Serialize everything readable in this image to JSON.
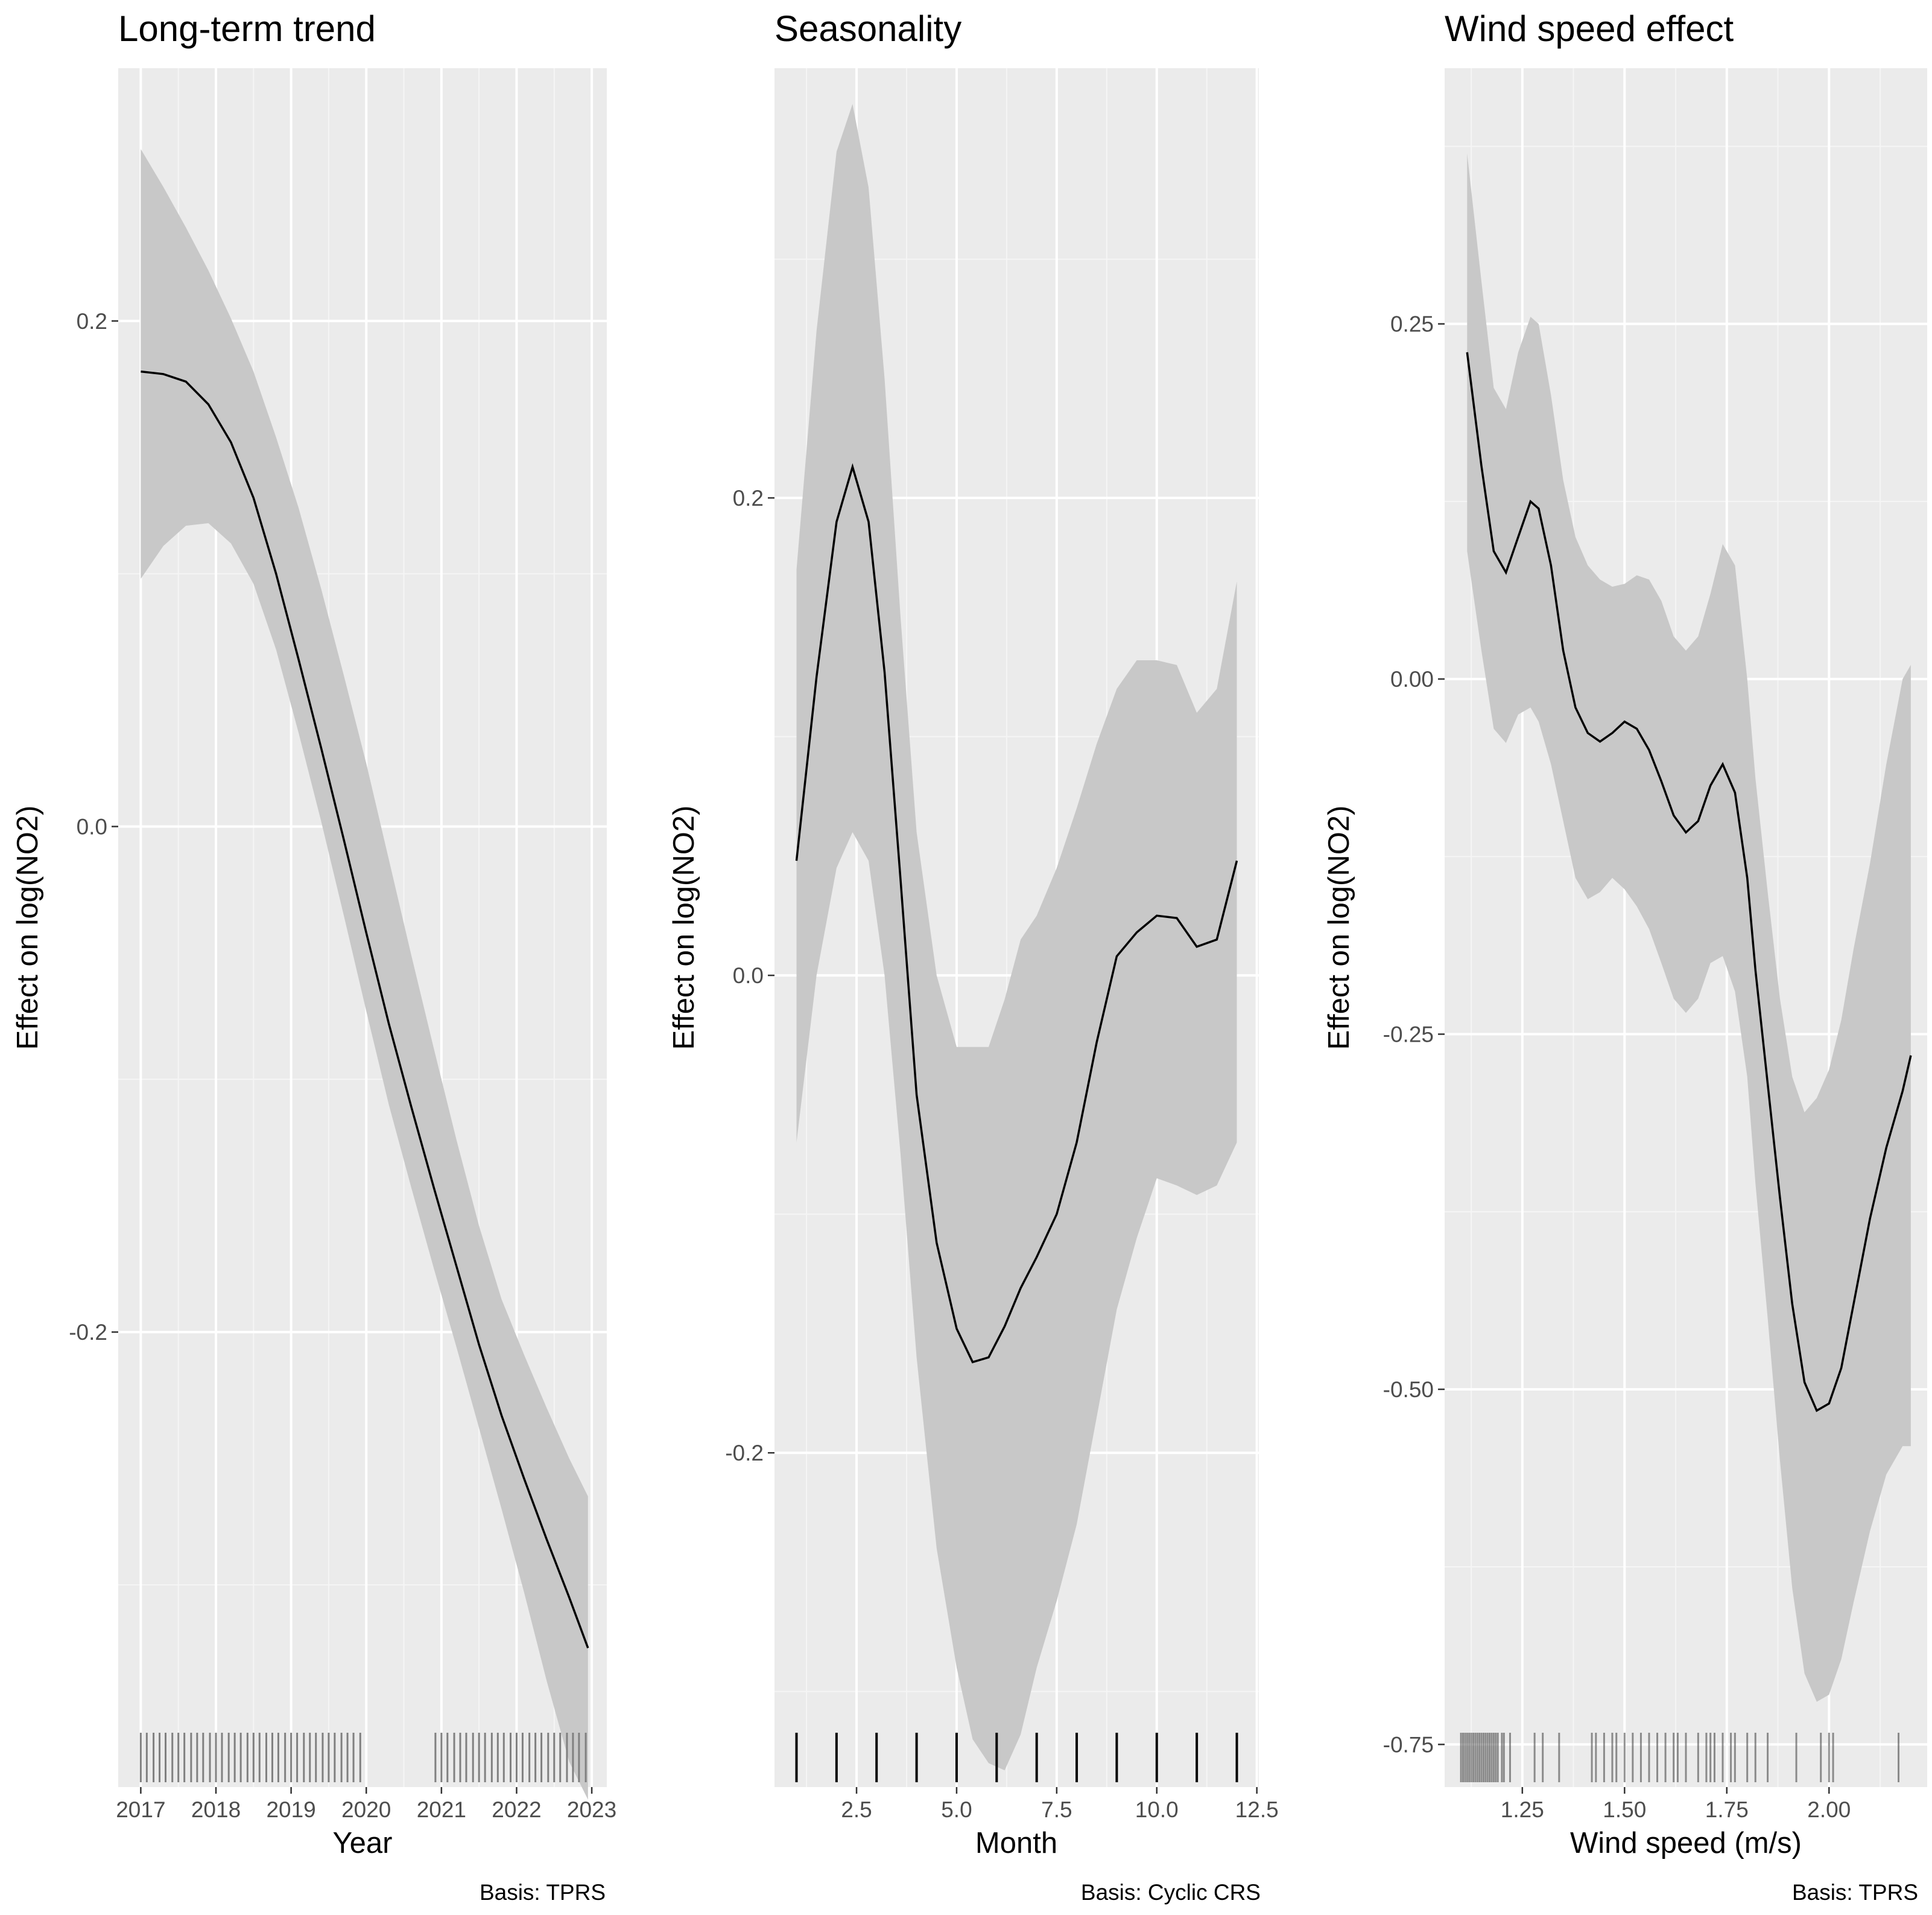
{
  "colors": {
    "panel_bg": "#ebebeb",
    "grid_major": "#ffffff",
    "grid_minor": "#f5f5f5",
    "ribbon": "#c8c8c8",
    "line": "#000000",
    "tick_text": "#4d4d4d",
    "rug_light": "#808080",
    "rug_dark": "#000000"
  },
  "chart_data": [
    {
      "type": "line",
      "title": "Long-term trend",
      "xlabel": "Year",
      "ylabel": "Effect on log(NO2)",
      "caption": "Basis: TPRS",
      "xlim": [
        2016.7,
        2023.2
      ],
      "ylim": [
        -0.38,
        0.3
      ],
      "x_ticks": [
        2017,
        2018,
        2019,
        2020,
        2021,
        2022,
        2023
      ],
      "x_tick_labels": [
        "2017",
        "2018",
        "2019",
        "2020",
        "2021",
        "2022",
        "2023"
      ],
      "y_ticks": [
        -0.2,
        0.0,
        0.2
      ],
      "y_tick_labels": [
        "-0.2",
        "0.0",
        "0.2"
      ],
      "x": [
        2017.0,
        2017.3,
        2017.6,
        2017.9,
        2018.2,
        2018.5,
        2018.8,
        2019.1,
        2019.4,
        2019.7,
        2020.0,
        2020.3,
        2020.6,
        2020.9,
        2021.2,
        2021.5,
        2021.8,
        2022.1,
        2022.4,
        2022.7,
        2022.95
      ],
      "fit": [
        0.18,
        0.179,
        0.176,
        0.167,
        0.152,
        0.13,
        0.1,
        0.066,
        0.031,
        -0.005,
        -0.042,
        -0.078,
        -0.111,
        -0.143,
        -0.174,
        -0.205,
        -0.233,
        -0.258,
        -0.282,
        -0.305,
        -0.325
      ],
      "lower": [
        0.098,
        0.111,
        0.119,
        0.12,
        0.112,
        0.096,
        0.07,
        0.037,
        0.002,
        -0.035,
        -0.073,
        -0.11,
        -0.143,
        -0.175,
        -0.206,
        -0.238,
        -0.27,
        -0.303,
        -0.338,
        -0.37,
        -0.385
      ],
      "upper": [
        0.268,
        0.253,
        0.237,
        0.22,
        0.201,
        0.18,
        0.154,
        0.126,
        0.094,
        0.06,
        0.025,
        -0.013,
        -0.051,
        -0.088,
        -0.124,
        -0.158,
        -0.187,
        -0.209,
        -0.23,
        -0.25,
        -0.265
      ],
      "rug": [
        2017.0,
        2017.08,
        2017.17,
        2017.25,
        2017.33,
        2017.42,
        2017.5,
        2017.58,
        2017.67,
        2017.75,
        2017.83,
        2017.92,
        2018.0,
        2018.08,
        2018.17,
        2018.25,
        2018.33,
        2018.42,
        2018.5,
        2018.58,
        2018.67,
        2018.75,
        2018.83,
        2018.92,
        2019.0,
        2019.08,
        2019.17,
        2019.25,
        2019.33,
        2019.42,
        2019.5,
        2019.58,
        2019.67,
        2019.75,
        2019.83,
        2019.92,
        2020.92,
        2021.0,
        2021.08,
        2021.17,
        2021.25,
        2021.33,
        2021.42,
        2021.5,
        2021.58,
        2021.67,
        2021.75,
        2021.83,
        2021.92,
        2022.0,
        2022.08,
        2022.17,
        2022.25,
        2022.33,
        2022.42,
        2022.5,
        2022.58,
        2022.67,
        2022.75,
        2022.83,
        2022.92
      ],
      "rug_shade": "light"
    },
    {
      "type": "line",
      "title": "Seasonality",
      "xlabel": "Month",
      "ylabel": "Effect on log(NO2)",
      "caption": "Basis: Cyclic CRS",
      "xlim": [
        0.45,
        12.55
      ],
      "ylim": [
        -0.34,
        0.38
      ],
      "x_ticks": [
        2.5,
        5.0,
        7.5,
        10.0,
        12.5
      ],
      "x_tick_labels": [
        "2.5",
        "5.0",
        "7.5",
        "10.0",
        "12.5"
      ],
      "y_ticks": [
        -0.2,
        0.0,
        0.2
      ],
      "y_tick_labels": [
        "-0.2",
        "0.0",
        "0.2"
      ],
      "x": [
        1.0,
        1.5,
        2.0,
        2.4,
        2.8,
        3.2,
        3.6,
        4.0,
        4.5,
        5.0,
        5.4,
        5.8,
        6.2,
        6.6,
        7.0,
        7.5,
        8.0,
        8.5,
        9.0,
        9.5,
        10.0,
        10.5,
        11.0,
        11.5,
        12.0
      ],
      "fit": [
        0.048,
        0.125,
        0.19,
        0.213,
        0.19,
        0.127,
        0.04,
        -0.05,
        -0.112,
        -0.148,
        -0.162,
        -0.16,
        -0.147,
        -0.131,
        -0.118,
        -0.1,
        -0.07,
        -0.028,
        0.008,
        0.018,
        0.025,
        0.024,
        0.012,
        0.015,
        0.048
      ],
      "lower": [
        -0.07,
        0.0,
        0.045,
        0.06,
        0.048,
        0.0,
        -0.075,
        -0.16,
        -0.24,
        -0.29,
        -0.32,
        -0.33,
        -0.333,
        -0.318,
        -0.29,
        -0.262,
        -0.23,
        -0.185,
        -0.14,
        -0.11,
        -0.085,
        -0.088,
        -0.092,
        -0.088,
        -0.07
      ],
      "upper": [
        0.17,
        0.27,
        0.345,
        0.365,
        0.33,
        0.25,
        0.15,
        0.06,
        0.0,
        -0.03,
        -0.03,
        -0.03,
        -0.01,
        0.015,
        0.025,
        0.045,
        0.07,
        0.097,
        0.12,
        0.132,
        0.132,
        0.13,
        0.11,
        0.12,
        0.165
      ],
      "rug": [
        1,
        2,
        3,
        4,
        5,
        6,
        7,
        8,
        9,
        10,
        11,
        12
      ],
      "rug_shade": "dark"
    },
    {
      "type": "line",
      "title": "Wind speed effect",
      "xlabel": "Wind speed (m/s)",
      "ylabel": "Effect on log(NO2)",
      "caption": "Basis: TPRS",
      "xlim": [
        1.06,
        2.24
      ],
      "ylim": [
        -0.78,
        0.43
      ],
      "x_ticks": [
        1.25,
        1.5,
        1.75,
        2.0
      ],
      "x_tick_labels": [
        "1.25",
        "1.50",
        "1.75",
        "2.00"
      ],
      "y_ticks": [
        -0.75,
        -0.5,
        -0.25,
        0.0,
        0.25
      ],
      "y_tick_labels": [
        "-0.75",
        "-0.50",
        "-0.25",
        "0.00",
        "0.25"
      ],
      "x": [
        1.115,
        1.15,
        1.18,
        1.21,
        1.24,
        1.27,
        1.29,
        1.32,
        1.35,
        1.38,
        1.41,
        1.44,
        1.47,
        1.5,
        1.53,
        1.56,
        1.59,
        1.62,
        1.65,
        1.68,
        1.71,
        1.74,
        1.77,
        1.8,
        1.82,
        1.85,
        1.88,
        1.91,
        1.94,
        1.97,
        2.0,
        2.03,
        2.06,
        2.1,
        2.14,
        2.18,
        2.2
      ],
      "fit": [
        0.23,
        0.15,
        0.09,
        0.075,
        0.1,
        0.125,
        0.12,
        0.08,
        0.02,
        -0.02,
        -0.038,
        -0.044,
        -0.038,
        -0.03,
        -0.035,
        -0.05,
        -0.072,
        -0.096,
        -0.108,
        -0.1,
        -0.075,
        -0.06,
        -0.08,
        -0.14,
        -0.205,
        -0.285,
        -0.365,
        -0.44,
        -0.495,
        -0.515,
        -0.51,
        -0.485,
        -0.44,
        -0.38,
        -0.33,
        -0.29,
        -0.265
      ],
      "lower": [
        0.09,
        0.02,
        -0.035,
        -0.045,
        -0.025,
        -0.02,
        -0.03,
        -0.06,
        -0.1,
        -0.14,
        -0.155,
        -0.15,
        -0.14,
        -0.148,
        -0.16,
        -0.176,
        -0.2,
        -0.225,
        -0.235,
        -0.225,
        -0.2,
        -0.195,
        -0.22,
        -0.28,
        -0.355,
        -0.45,
        -0.55,
        -0.64,
        -0.7,
        -0.72,
        -0.715,
        -0.69,
        -0.65,
        -0.6,
        -0.56,
        -0.54,
        -0.54
      ],
      "upper": [
        0.37,
        0.28,
        0.205,
        0.19,
        0.23,
        0.255,
        0.25,
        0.2,
        0.14,
        0.1,
        0.08,
        0.07,
        0.065,
        0.067,
        0.073,
        0.07,
        0.055,
        0.03,
        0.02,
        0.03,
        0.06,
        0.095,
        0.08,
        0.0,
        -0.07,
        -0.15,
        -0.225,
        -0.28,
        -0.305,
        -0.295,
        -0.275,
        -0.24,
        -0.19,
        -0.13,
        -0.06,
        0.0,
        0.01
      ],
      "rug": [
        1.1,
        1.105,
        1.11,
        1.115,
        1.12,
        1.125,
        1.13,
        1.135,
        1.14,
        1.145,
        1.15,
        1.155,
        1.16,
        1.165,
        1.17,
        1.175,
        1.18,
        1.185,
        1.19,
        1.2,
        1.205,
        1.22,
        1.28,
        1.3,
        1.34,
        1.42,
        1.43,
        1.45,
        1.47,
        1.48,
        1.5,
        1.52,
        1.54,
        1.56,
        1.58,
        1.6,
        1.62,
        1.63,
        1.65,
        1.68,
        1.7,
        1.71,
        1.72,
        1.74,
        1.76,
        1.77,
        1.8,
        1.82,
        1.85,
        1.92,
        1.98,
        2.0,
        2.01,
        2.17
      ],
      "rug_shade": "mixed"
    }
  ]
}
